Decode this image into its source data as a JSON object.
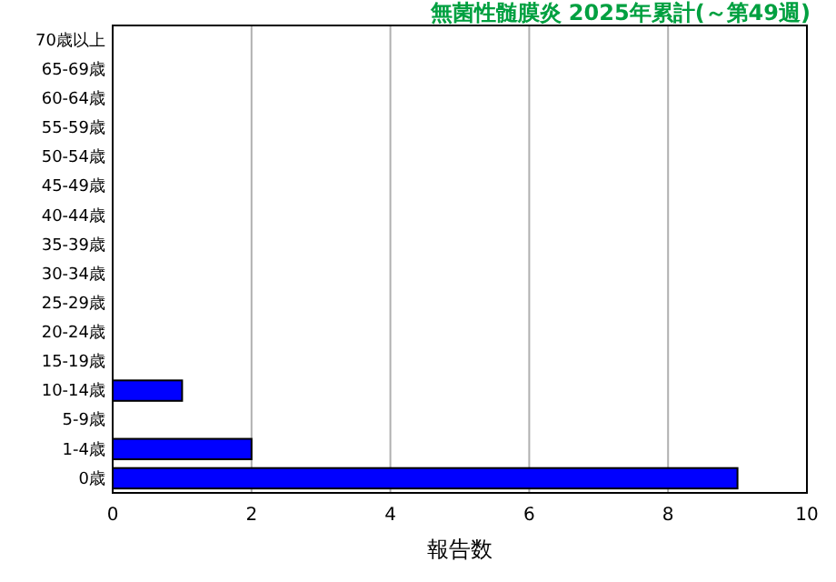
{
  "chart_data": {
    "type": "bar",
    "orientation": "horizontal",
    "title": "無菌性髄膜炎 2025年累計(～第49週)",
    "xlabel": "報告数",
    "categories": [
      "70歳以上",
      "65-69歳",
      "60-64歳",
      "55-59歳",
      "50-54歳",
      "45-49歳",
      "40-44歳",
      "35-39歳",
      "30-34歳",
      "25-29歳",
      "20-24歳",
      "15-19歳",
      "10-14歳",
      "5-9歳",
      "1-4歳",
      "0歳"
    ],
    "values": [
      0,
      0,
      0,
      0,
      0,
      0,
      0,
      0,
      0,
      0,
      0,
      0,
      1,
      0,
      2,
      9
    ],
    "color": "#0000ff",
    "xlim": [
      0,
      10
    ],
    "xticks": [
      0,
      2,
      4,
      6,
      8,
      10
    ],
    "grid": "x"
  }
}
